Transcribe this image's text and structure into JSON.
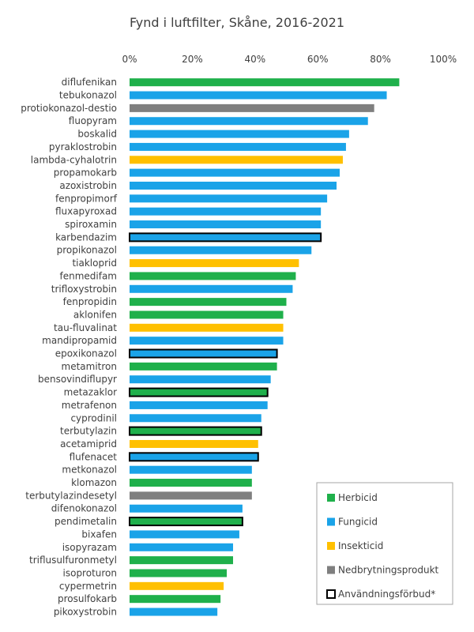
{
  "chart_data": {
    "type": "bar",
    "orientation": "horizontal",
    "title": "Fynd i luftfilter, Skåne, 2016-2021",
    "xlabel": "",
    "ylabel": "",
    "xlim": [
      0,
      1.0
    ],
    "x_ticks": [
      "0%",
      "20%",
      "40%",
      "60%",
      "80%",
      "100%"
    ],
    "grid": false,
    "legend_position": "bottom-right",
    "colors": {
      "Herbicid": "#1fb04b",
      "Fungicid": "#1aa3e8",
      "Insekticid": "#ffc000",
      "Nedbrytningsprodukt": "#7f7f7f"
    },
    "legend": [
      {
        "label": "Herbicid",
        "kind": "Herbicid"
      },
      {
        "label": "Fungicid",
        "kind": "Fungicid"
      },
      {
        "label": "Insekticid",
        "kind": "Insekticid"
      },
      {
        "label": "Nedbrytningsprodukt",
        "kind": "Nedbrytningsprodukt"
      },
      {
        "label": "Användningsförbud*",
        "kind": "ban"
      }
    ],
    "categories": [
      "diflufenikan",
      "tebukonazol",
      "protiokonazol-destio",
      "fluopyram",
      "boskalid",
      "pyraklostrobin",
      "lambda-cyhalotrin",
      "propamokarb",
      "azoxistrobin",
      "fenpropimorf",
      "fluxapyroxad",
      "spiroxamin",
      "karbendazim",
      "propikonazol",
      "tiakloprid",
      "fenmedifam",
      "trifloxystrobin",
      "fenpropidin",
      "aklonifen",
      "tau-fluvalinat",
      "mandipropamid",
      "epoxikonazol",
      "metamitron",
      "bensovindiflupyr",
      "metazaklor",
      "metrafenon",
      "cyprodinil",
      "terbutylazin",
      "acetamiprid",
      "flufenacet",
      "metkonazol",
      "klomazon",
      "terbutylazindesetyl",
      "difenokonazol",
      "pendimetalin",
      "bixafen",
      "isopyrazam",
      "triflusulfuronmetyl",
      "isoproturon",
      "cypermetrin",
      "prosulfokarb",
      "pikoxystrobin"
    ],
    "values": [
      0.86,
      0.82,
      0.78,
      0.76,
      0.7,
      0.69,
      0.68,
      0.67,
      0.66,
      0.63,
      0.61,
      0.61,
      0.61,
      0.58,
      0.54,
      0.53,
      0.52,
      0.5,
      0.49,
      0.49,
      0.49,
      0.47,
      0.47,
      0.45,
      0.44,
      0.44,
      0.42,
      0.42,
      0.41,
      0.41,
      0.39,
      0.39,
      0.39,
      0.36,
      0.36,
      0.35,
      0.33,
      0.33,
      0.31,
      0.3,
      0.29,
      0.28
    ],
    "groups": [
      "Herbicid",
      "Fungicid",
      "Nedbrytningsprodukt",
      "Fungicid",
      "Fungicid",
      "Fungicid",
      "Insekticid",
      "Fungicid",
      "Fungicid",
      "Fungicid",
      "Fungicid",
      "Fungicid",
      "Fungicid",
      "Fungicid",
      "Insekticid",
      "Herbicid",
      "Fungicid",
      "Herbicid",
      "Herbicid",
      "Insekticid",
      "Fungicid",
      "Fungicid",
      "Herbicid",
      "Fungicid",
      "Herbicid",
      "Fungicid",
      "Fungicid",
      "Herbicid",
      "Insekticid",
      "Fungicid",
      "Fungicid",
      "Herbicid",
      "Nedbrytningsprodukt",
      "Fungicid",
      "Herbicid",
      "Fungicid",
      "Fungicid",
      "Herbicid",
      "Herbicid",
      "Insekticid",
      "Herbicid",
      "Fungicid"
    ],
    "banned": [
      false,
      false,
      false,
      false,
      false,
      false,
      false,
      false,
      false,
      false,
      false,
      false,
      true,
      false,
      false,
      false,
      false,
      false,
      false,
      false,
      false,
      true,
      false,
      false,
      true,
      false,
      false,
      true,
      false,
      true,
      false,
      false,
      false,
      false,
      true,
      false,
      false,
      false,
      false,
      false,
      false,
      false
    ]
  }
}
